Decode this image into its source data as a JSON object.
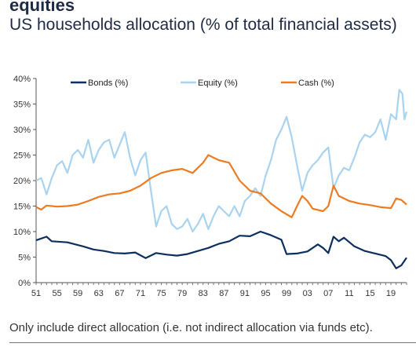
{
  "header": {
    "title": "equities",
    "subtitle": "US households allocation (% of total financial assets)"
  },
  "footnote": "Only include direct allocation (i.e. not indirect allocation via funds etc).",
  "chart_data": {
    "type": "line",
    "title": "US households allocation (% of total financial assets)",
    "xlabel": "",
    "ylabel": "",
    "xlim": [
      1951,
      2022
    ],
    "ylim": [
      0,
      40
    ],
    "x_tick_labels": [
      "51",
      "55",
      "59",
      "63",
      "67",
      "71",
      "75",
      "79",
      "83",
      "87",
      "91",
      "95",
      "99",
      "03",
      "07",
      "11",
      "15",
      "19"
    ],
    "x_tick_values": [
      1951,
      1955,
      1959,
      1963,
      1967,
      1971,
      1975,
      1979,
      1983,
      1987,
      1991,
      1995,
      1999,
      2003,
      2007,
      2011,
      2015,
      2019
    ],
    "y_tick_labels": [
      "0%",
      "5%",
      "10%",
      "15%",
      "20%",
      "25%",
      "30%",
      "35%",
      "40%"
    ],
    "y_tick_values": [
      0,
      5,
      10,
      15,
      20,
      25,
      30,
      35,
      40
    ],
    "grid": false,
    "legend_position": "top",
    "series": [
      {
        "name": "Bonds (%)",
        "color": "#0d2f5e",
        "points": [
          [
            1951,
            8.3
          ],
          [
            1953,
            9
          ],
          [
            1954,
            8.1
          ],
          [
            1957,
            7.9
          ],
          [
            1960,
            7.1
          ],
          [
            1962,
            6.5
          ],
          [
            1964,
            6.2
          ],
          [
            1966,
            5.8
          ],
          [
            1968,
            5.7
          ],
          [
            1970,
            5.9
          ],
          [
            1972,
            4.8
          ],
          [
            1974,
            5.8
          ],
          [
            1976,
            5.5
          ],
          [
            1978,
            5.3
          ],
          [
            1980,
            5.6
          ],
          [
            1982,
            6.2
          ],
          [
            1984,
            6.8
          ],
          [
            1986,
            7.6
          ],
          [
            1988,
            8.1
          ],
          [
            1990,
            9.2
          ],
          [
            1992,
            9.1
          ],
          [
            1994,
            10
          ],
          [
            1996,
            9.3
          ],
          [
            1998,
            8.4
          ],
          [
            1999,
            5.6
          ],
          [
            2001,
            5.7
          ],
          [
            2003,
            6.1
          ],
          [
            2005,
            7.5
          ],
          [
            2006,
            6.8
          ],
          [
            2007,
            5.8
          ],
          [
            2008,
            9
          ],
          [
            2009,
            8.1
          ],
          [
            2010,
            8.8
          ],
          [
            2012,
            7.1
          ],
          [
            2014,
            6.2
          ],
          [
            2016,
            5.7
          ],
          [
            2018,
            5.2
          ],
          [
            2019,
            4.4
          ],
          [
            2020,
            2.8
          ],
          [
            2021,
            3.4
          ],
          [
            2022,
            4.9
          ]
        ]
      },
      {
        "name": "Equity (%)",
        "color": "#a9d3ef",
        "points": [
          [
            1951,
            20
          ],
          [
            1952,
            20.5
          ],
          [
            1953,
            17.3
          ],
          [
            1954,
            20.5
          ],
          [
            1955,
            23
          ],
          [
            1956,
            23.8
          ],
          [
            1957,
            21.5
          ],
          [
            1958,
            25
          ],
          [
            1959,
            26
          ],
          [
            1960,
            24.5
          ],
          [
            1961,
            28
          ],
          [
            1962,
            23.5
          ],
          [
            1963,
            26
          ],
          [
            1964,
            27.5
          ],
          [
            1965,
            28
          ],
          [
            1966,
            24.5
          ],
          [
            1967,
            27
          ],
          [
            1968,
            29.5
          ],
          [
            1969,
            24.5
          ],
          [
            1970,
            21
          ],
          [
            1971,
            24
          ],
          [
            1972,
            25.5
          ],
          [
            1973,
            18
          ],
          [
            1974,
            11
          ],
          [
            1975,
            14
          ],
          [
            1976,
            15
          ],
          [
            1977,
            11.5
          ],
          [
            1978,
            10.5
          ],
          [
            1979,
            11
          ],
          [
            1980,
            12.5
          ],
          [
            1981,
            10
          ],
          [
            1982,
            11.5
          ],
          [
            1983,
            13.5
          ],
          [
            1984,
            10.5
          ],
          [
            1985,
            13
          ],
          [
            1986,
            15
          ],
          [
            1987,
            14
          ],
          [
            1988,
            13
          ],
          [
            1989,
            15
          ],
          [
            1990,
            13
          ],
          [
            1991,
            16
          ],
          [
            1992,
            17
          ],
          [
            1993,
            18.5
          ],
          [
            1994,
            17
          ],
          [
            1995,
            21
          ],
          [
            1996,
            24
          ],
          [
            1997,
            28
          ],
          [
            1998,
            30
          ],
          [
            1999,
            32.5
          ],
          [
            2000,
            28.5
          ],
          [
            2001,
            23
          ],
          [
            2002,
            18
          ],
          [
            2003,
            21.5
          ],
          [
            2004,
            23
          ],
          [
            2005,
            24
          ],
          [
            2006,
            25.5
          ],
          [
            2007,
            26.5
          ],
          [
            2008,
            18.5
          ],
          [
            2009,
            21
          ],
          [
            2010,
            22.5
          ],
          [
            2011,
            22
          ],
          [
            2012,
            24.5
          ],
          [
            2013,
            27.5
          ],
          [
            2014,
            29
          ],
          [
            2015,
            28.5
          ],
          [
            2016,
            29.5
          ],
          [
            2017,
            32
          ],
          [
            2018,
            28
          ],
          [
            2019,
            33
          ],
          [
            2020,
            32
          ],
          [
            2020.6,
            37.8
          ],
          [
            2021.2,
            37
          ],
          [
            2021.6,
            32
          ],
          [
            2022,
            33.5
          ]
        ]
      },
      {
        "name": "Cash (%)",
        "color": "#ec7b23",
        "points": [
          [
            1951,
            14.8
          ],
          [
            1952,
            14.3
          ],
          [
            1953,
            15.1
          ],
          [
            1955,
            14.9
          ],
          [
            1957,
            15
          ],
          [
            1959,
            15.3
          ],
          [
            1961,
            16
          ],
          [
            1963,
            16.8
          ],
          [
            1965,
            17.3
          ],
          [
            1967,
            17.5
          ],
          [
            1969,
            18
          ],
          [
            1971,
            19
          ],
          [
            1973,
            20.5
          ],
          [
            1975,
            21.5
          ],
          [
            1977,
            22
          ],
          [
            1979,
            22.3
          ],
          [
            1981,
            21.5
          ],
          [
            1983,
            23.5
          ],
          [
            1984,
            25
          ],
          [
            1986,
            24
          ],
          [
            1988,
            23.5
          ],
          [
            1990,
            20
          ],
          [
            1992,
            18
          ],
          [
            1994,
            17.5
          ],
          [
            1996,
            15.5
          ],
          [
            1998,
            14
          ],
          [
            2000,
            12.8
          ],
          [
            2001,
            15
          ],
          [
            2002,
            17
          ],
          [
            2003,
            16
          ],
          [
            2004,
            14.5
          ],
          [
            2006,
            14
          ],
          [
            2007,
            15
          ],
          [
            2008,
            19
          ],
          [
            2009,
            17
          ],
          [
            2011,
            16
          ],
          [
            2013,
            15.5
          ],
          [
            2015,
            15.2
          ],
          [
            2017,
            14.8
          ],
          [
            2019,
            14.6
          ],
          [
            2020,
            16.5
          ],
          [
            2021,
            16.2
          ],
          [
            2022,
            15.3
          ]
        ]
      }
    ]
  }
}
